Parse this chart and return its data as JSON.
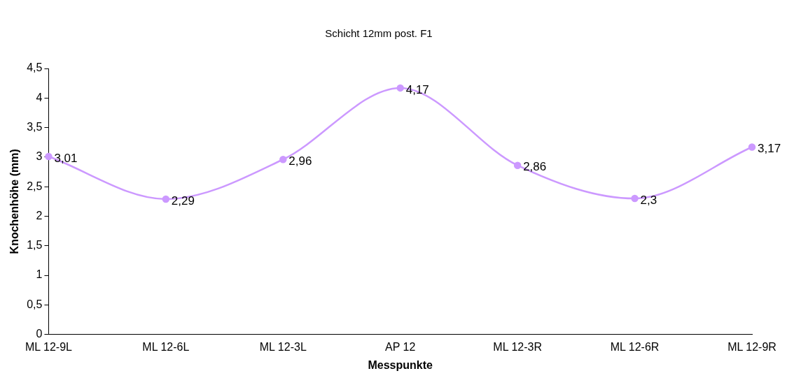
{
  "chart_data": {
    "type": "line",
    "title": "Schicht 12mm post. F1",
    "xlabel": "Messpunkte",
    "ylabel": "Knochenhöhe (mm)",
    "categories": [
      "ML 12-9L",
      "ML 12-6L",
      "ML 12-3L",
      "AP 12",
      "ML 12-3R",
      "ML 12-6R",
      "ML 12-9R"
    ],
    "series": [
      {
        "color": "#cc99ff",
        "values": [
          3.01,
          2.29,
          2.96,
          4.17,
          2.86,
          2.3,
          3.17
        ],
        "value_labels": [
          "3,01",
          "2,29",
          "2,96",
          "4,17",
          "2,86",
          "2,3",
          "3,17"
        ]
      }
    ],
    "ylim": [
      0,
      4.5
    ],
    "yticks": [
      0,
      {
        "value": 0.5,
        "label": "0,5"
      },
      1,
      {
        "value": 1.5,
        "label": "1,5"
      },
      2,
      {
        "value": 2.5,
        "label": "2,5"
      },
      3,
      {
        "value": 3.5,
        "label": "3,5"
      },
      4,
      {
        "value": 4.5,
        "label": "4,5"
      }
    ],
    "grid": false,
    "legend": false,
    "marker": "circle",
    "line_style": "solid"
  }
}
